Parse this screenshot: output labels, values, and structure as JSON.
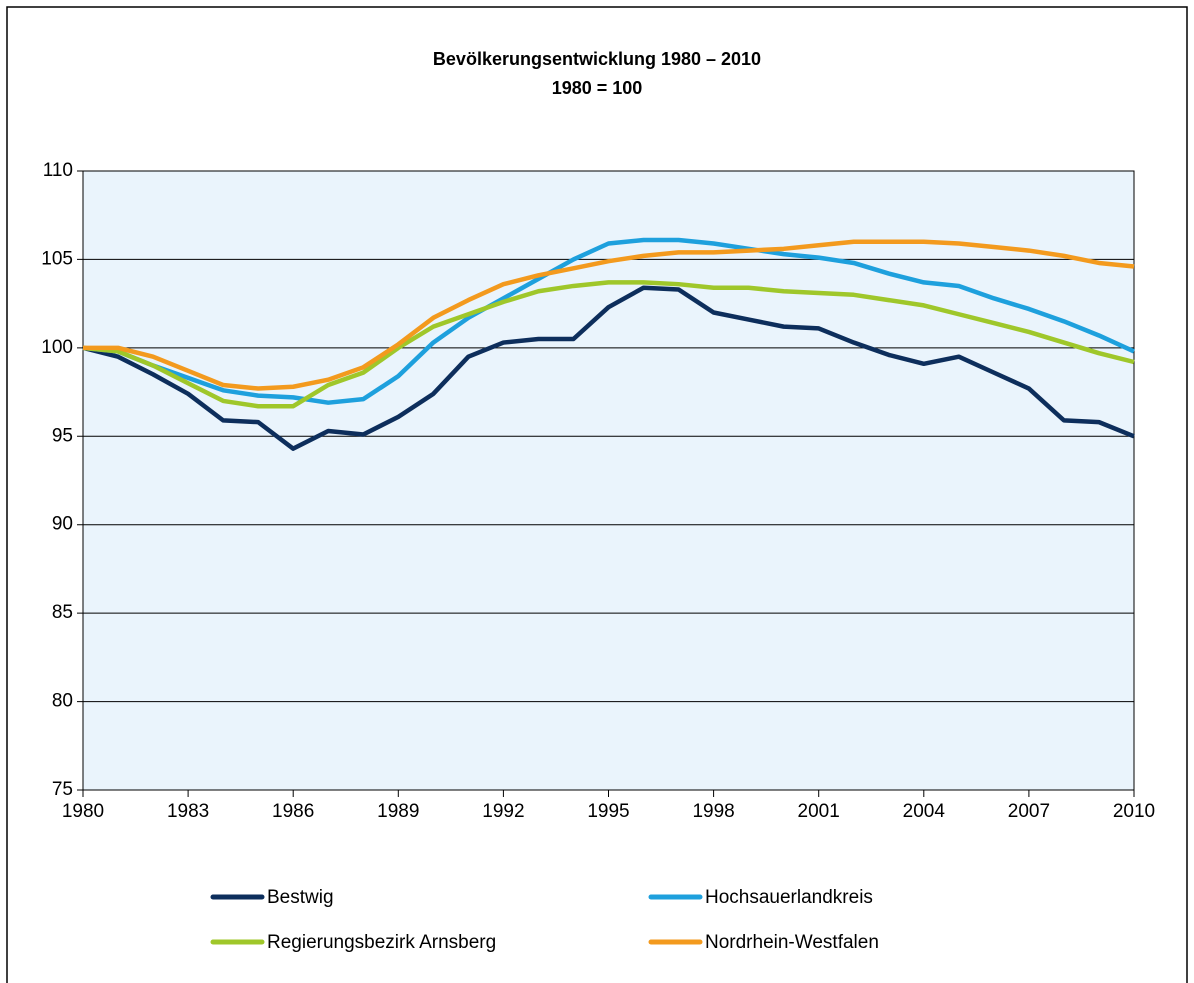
{
  "chart_data": {
    "type": "line",
    "title": "Bevölkerungsentwicklung 1980 – 2010",
    "subtitle": "1980 = 100",
    "x": [
      1980,
      1981,
      1982,
      1983,
      1984,
      1985,
      1986,
      1987,
      1988,
      1989,
      1990,
      1991,
      1992,
      1993,
      1994,
      1995,
      1996,
      1997,
      1998,
      1999,
      2000,
      2001,
      2002,
      2003,
      2004,
      2005,
      2006,
      2007,
      2008,
      2009,
      2010
    ],
    "series": [
      {
        "name": "Bestwig",
        "color": "#0d2e5c",
        "values": [
          100,
          99.5,
          98.5,
          97.4,
          95.9,
          95.8,
          94.3,
          95.3,
          95.1,
          96.1,
          97.4,
          99.5,
          100.3,
          100.5,
          100.5,
          102.3,
          103.4,
          103.3,
          102.0,
          101.6,
          101.2,
          101.1,
          100.3,
          99.6,
          99.1,
          99.5,
          98.6,
          97.7,
          95.9,
          95.8,
          95.0
        ]
      },
      {
        "name": "Hochsauerlandkreis",
        "color": "#1ea0dd",
        "values": [
          100,
          99.8,
          99.0,
          98.3,
          97.6,
          97.3,
          97.2,
          96.9,
          97.1,
          98.4,
          100.3,
          101.7,
          102.8,
          103.9,
          105.0,
          105.9,
          106.1,
          106.1,
          105.9,
          105.6,
          105.3,
          105.1,
          104.8,
          104.2,
          103.7,
          103.5,
          102.8,
          102.2,
          101.5,
          100.7,
          99.8
        ]
      },
      {
        "name": "Regierungsbezirk Arnsberg",
        "color": "#9fc72a",
        "values": [
          100,
          99.8,
          99.0,
          98.0,
          97.0,
          96.7,
          96.7,
          97.9,
          98.6,
          100.0,
          101.2,
          101.9,
          102.6,
          103.2,
          103.5,
          103.7,
          103.7,
          103.6,
          103.4,
          103.4,
          103.2,
          103.1,
          103.0,
          102.7,
          102.4,
          101.9,
          101.4,
          100.9,
          100.3,
          99.7,
          99.2
        ]
      },
      {
        "name": "Nordrhein-Westfalen",
        "color": "#f39a1e",
        "values": [
          100,
          100,
          99.5,
          98.7,
          97.9,
          97.7,
          97.8,
          98.2,
          98.9,
          100.2,
          101.7,
          102.7,
          103.6,
          104.1,
          104.5,
          104.9,
          105.2,
          105.4,
          105.4,
          105.5,
          105.6,
          105.8,
          106.0,
          106.0,
          106.0,
          105.9,
          105.7,
          105.5,
          105.2,
          104.8,
          104.6
        ]
      }
    ],
    "xlim": [
      1980,
      2010
    ],
    "xticks": [
      1980,
      1983,
      1986,
      1989,
      1992,
      1995,
      1998,
      2001,
      2004,
      2007,
      2010
    ],
    "ylim": [
      75,
      110
    ],
    "yticks": [
      75,
      80,
      85,
      90,
      95,
      100,
      105,
      110
    ],
    "grid": true,
    "plot_background": "#eaf4fc"
  }
}
